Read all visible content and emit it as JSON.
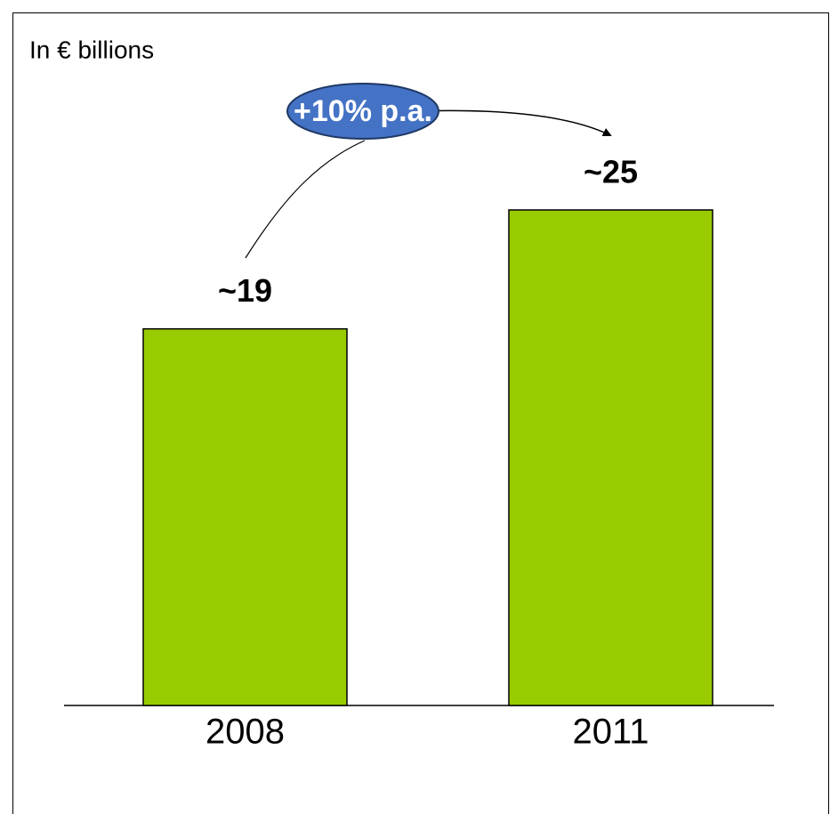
{
  "chart_data": {
    "type": "bar",
    "subtitle": "In € billions",
    "annotation": "+10% p.a.",
    "categories": [
      "2008",
      "2011"
    ],
    "values": [
      19,
      25
    ],
    "value_labels": [
      "~19",
      "~25"
    ],
    "color": "#99cc00"
  }
}
